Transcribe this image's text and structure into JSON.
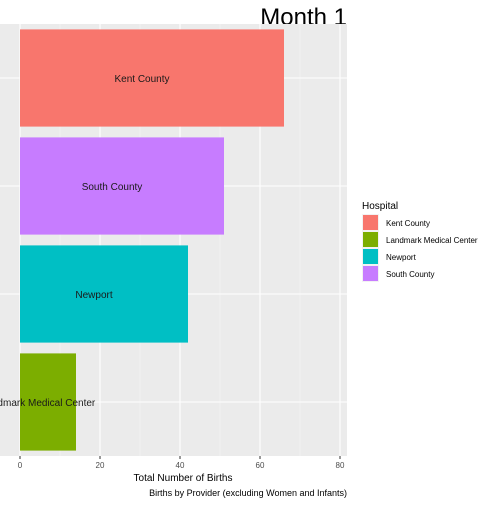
{
  "chart_data": {
    "type": "bar",
    "orientation": "horizontal",
    "title": "Month 1",
    "xlabel": "Total Number of Births",
    "caption": "Births by Provider (excluding Women and Infants)",
    "categories": [
      "Kent County",
      "South County",
      "Newport",
      "Landmark Medical Center"
    ],
    "values": [
      66,
      51,
      42,
      14
    ],
    "xlim": [
      0,
      82
    ],
    "x_ticks": [
      "0",
      "20",
      "40",
      "60",
      "80"
    ],
    "grid": true,
    "legend": {
      "title": "Hospital",
      "position": "right",
      "items": [
        {
          "label": "Kent County",
          "color": "#F8766D"
        },
        {
          "label": "Landmark Medical Center",
          "color": "#7CAE00"
        },
        {
          "label": "Newport",
          "color": "#00BFC4"
        },
        {
          "label": "South County",
          "color": "#C77CFF"
        }
      ]
    },
    "colors": {
      "Kent County": "#F8766D",
      "South County": "#C77CFF",
      "Newport": "#00BFC4",
      "Landmark Medical Center": "#7CAE00"
    },
    "panel_background": "#EBEBEB"
  }
}
